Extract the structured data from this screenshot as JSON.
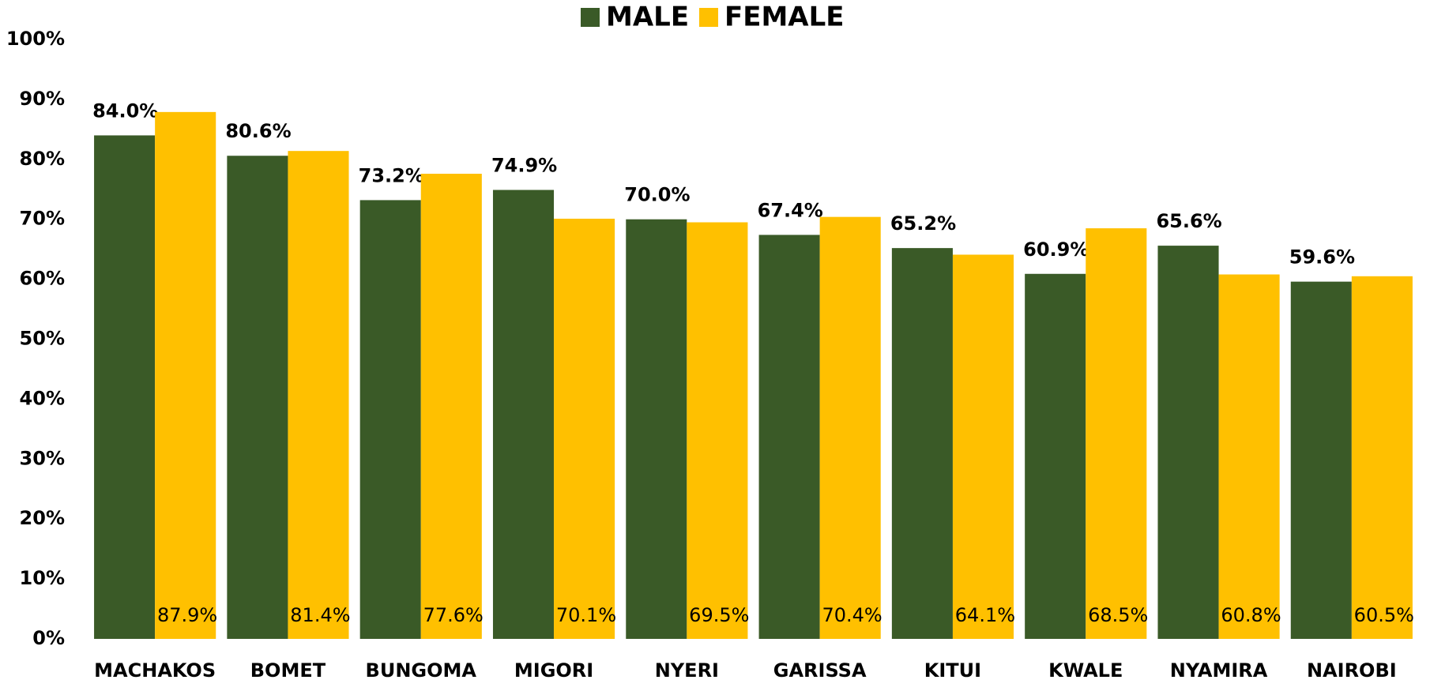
{
  "chart_data": {
    "type": "bar",
    "categories": [
      "MACHAKOS",
      "BOMET",
      "BUNGOMA",
      "MIGORI",
      "NYERI",
      "GARISSA",
      "KITUI",
      "KWALE",
      "NYAMIRA",
      "NAIROBI"
    ],
    "series": [
      {
        "name": "MALE",
        "color": "#3a5a27",
        "values": [
          84.0,
          80.6,
          73.2,
          74.9,
          70.0,
          67.4,
          65.2,
          60.9,
          65.6,
          59.6
        ],
        "value_labels": [
          "84.0%",
          "80.6%",
          "73.2%",
          "74.9%",
          "70.0%",
          "67.4%",
          "65.2%",
          "60.9%",
          "65.6%",
          "59.6%"
        ]
      },
      {
        "name": "FEMALE",
        "color": "#ffc000",
        "values": [
          87.9,
          81.4,
          77.6,
          70.1,
          69.5,
          70.4,
          64.1,
          68.5,
          60.8,
          60.5
        ],
        "value_labels": [
          "87.9%",
          "81.4%",
          "77.6%",
          "70.1%",
          "69.5%",
          "70.4%",
          "64.1%",
          "68.5%",
          "60.8%",
          "60.5%"
        ]
      }
    ],
    "ylim": [
      0,
      100
    ],
    "yticks": [
      {
        "value": 0,
        "label": "0%"
      },
      {
        "value": 10,
        "label": "10%"
      },
      {
        "value": 20,
        "label": "20%"
      },
      {
        "value": 30,
        "label": "30%"
      },
      {
        "value": 40,
        "label": "40%"
      },
      {
        "value": 50,
        "label": "50%"
      },
      {
        "value": 60,
        "label": "60%"
      },
      {
        "value": 70,
        "label": "70%"
      },
      {
        "value": 80,
        "label": "80%"
      },
      {
        "value": 90,
        "label": "90%"
      },
      {
        "value": 100,
        "label": "100%"
      }
    ],
    "legend": "top",
    "grid": false
  }
}
